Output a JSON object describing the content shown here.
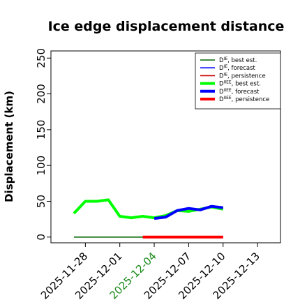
{
  "chart_data": {
    "type": "line",
    "title": "Ice edge displacement distance",
    "xlabel": "",
    "ylabel": "Displacement (km)",
    "ylim": [
      -8,
      260
    ],
    "yticks": [
      0,
      50,
      100,
      150,
      200,
      250
    ],
    "xlim": [
      "2025-11-25",
      "2025-12-15"
    ],
    "xticks": [
      "2025-11-28",
      "2025-12-01",
      "2025-12-04",
      "2025-12-07",
      "2025-12-10",
      "2025-12-13"
    ],
    "highlighted_xtick": "2025-12-04",
    "highlight_color": "#1a8a1a",
    "grid": false,
    "legend_position": "upper-right",
    "series": [
      {
        "key": "ie_best",
        "label_base": "D",
        "label_sup": "IE",
        "label_tail": ", best est.",
        "color": "#006400",
        "width": 1.6,
        "x": [
          "2025-11-27",
          "2025-12-10"
        ],
        "y": [
          0,
          0
        ]
      },
      {
        "key": "ie_forecast",
        "label_base": "D",
        "label_sup": "IE",
        "label_tail": ", forecast",
        "color": "#0000ff",
        "width": 1.6,
        "x": [],
        "y": []
      },
      {
        "key": "ie_persistence",
        "label_base": "D",
        "label_sup": "IE",
        "label_tail": ", persistence",
        "color": "#cc0000",
        "width": 1.6,
        "x": [],
        "y": []
      },
      {
        "key": "iiee_best",
        "label_base": "D",
        "label_sup": "IIEE",
        "label_tail": ", best est.",
        "color": "#00ff00",
        "width": 4,
        "x": [
          "2025-11-27",
          "2025-11-28",
          "2025-11-29",
          "2025-11-30",
          "2025-12-01",
          "2025-12-02",
          "2025-12-03",
          "2025-12-04",
          "2025-12-05",
          "2025-12-06",
          "2025-12-07",
          "2025-12-08",
          "2025-12-09",
          "2025-12-10"
        ],
        "y": [
          33,
          50,
          50,
          52,
          29,
          27,
          29,
          27,
          30,
          37,
          36,
          39,
          42,
          39
        ]
      },
      {
        "key": "iiee_forecast",
        "label_base": "D",
        "label_sup": "IIEE",
        "label_tail": ", forecast",
        "color": "#0000ff",
        "width": 4,
        "x": [
          "2025-12-04",
          "2025-12-05",
          "2025-12-06",
          "2025-12-07",
          "2025-12-08",
          "2025-12-09",
          "2025-12-10"
        ],
        "y": [
          26,
          28,
          37,
          40,
          38,
          43,
          41
        ]
      },
      {
        "key": "iiee_persistence",
        "label_base": "D",
        "label_sup": "IIEE",
        "label_tail": ", persistence",
        "color": "#ff0000",
        "width": 4,
        "x": [
          "2025-12-03",
          "2025-12-10"
        ],
        "y": [
          0,
          0
        ]
      }
    ]
  }
}
